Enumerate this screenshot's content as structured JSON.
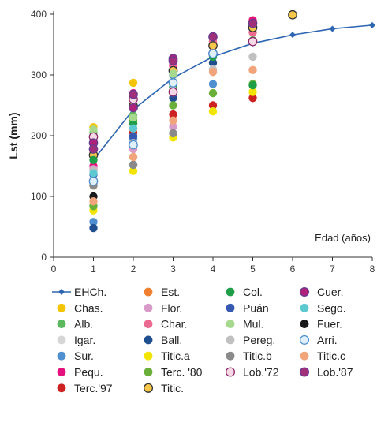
{
  "chart_data": {
    "type": "scatter",
    "ylabel": "Lst (mm)",
    "xlabel_inside": "Edad (años)",
    "xlim": [
      0,
      8
    ],
    "ylim": [
      0,
      400
    ],
    "x_ticks": [
      0,
      1,
      2,
      3,
      4,
      5,
      6,
      7,
      8
    ],
    "y_ticks": [
      0,
      100,
      200,
      300,
      400
    ],
    "grid": false,
    "legend_position": "bottom",
    "line_series": {
      "name": "EHCh.",
      "color": "#2f66b3",
      "x": [
        1,
        2,
        3,
        4,
        5,
        6,
        7,
        8
      ],
      "y": [
        160,
        243,
        295,
        330,
        352,
        366,
        376,
        382
      ]
    },
    "series": [
      {
        "name": "Chas.",
        "color": "#f4c400",
        "outline": "none",
        "x": [
          1,
          2,
          3,
          4,
          5
        ],
        "y": [
          214,
          287,
          328,
          360,
          390
        ]
      },
      {
        "name": "Alb.",
        "color": "#5cb85c",
        "outline": "none",
        "x": [
          1,
          2,
          3,
          4,
          5
        ],
        "y": [
          205,
          233,
          307,
          352,
          357
        ]
      },
      {
        "name": "Igar.",
        "color": "#d6d6d6",
        "outline": "none",
        "x": [
          1,
          2,
          3
        ],
        "y": [
          160,
          190,
          290
        ]
      },
      {
        "name": "Sur.",
        "color": "#4f8fd0",
        "outline": "none",
        "x": [
          1,
          2,
          3,
          4
        ],
        "y": [
          58,
          195,
          300,
          285
        ]
      },
      {
        "name": "Pequ.",
        "color": "#e4117e",
        "outline": "none",
        "x": [
          1,
          2,
          3,
          4,
          5
        ],
        "y": [
          150,
          270,
          315,
          360,
          390
        ]
      },
      {
        "name": "Terc.'97",
        "color": "#cc2222",
        "outline": "none",
        "x": [
          1,
          2,
          3,
          4,
          5
        ],
        "y": [
          122,
          205,
          235,
          250,
          262
        ]
      },
      {
        "name": "Est.",
        "color": "#f08030",
        "outline": "none",
        "x": [
          1,
          2
        ],
        "y": [
          118,
          212
        ]
      },
      {
        "name": "Flor.",
        "color": "#d89bc8",
        "outline": "none",
        "x": [
          1,
          2,
          3
        ],
        "y": [
          145,
          178,
          215
        ]
      },
      {
        "name": "Char.",
        "color": "#ec6a90",
        "outline": "none",
        "x": [
          1,
          2,
          3,
          4,
          5
        ],
        "y": [
          174,
          268,
          318,
          355,
          370
        ]
      },
      {
        "name": "Ball.",
        "color": "#1f4f8f",
        "outline": "none",
        "x": [
          1,
          2,
          3,
          4
        ],
        "y": [
          48,
          152,
          262,
          320
        ]
      },
      {
        "name": "Titic.a",
        "color": "#f2e600",
        "outline": "none",
        "x": [
          1,
          2,
          3,
          4,
          5
        ],
        "y": [
          77,
          142,
          197,
          240,
          272
        ]
      },
      {
        "name": "Terc. '80",
        "color": "#6aaf3a",
        "outline": "none",
        "x": [
          1,
          2,
          3,
          4,
          5
        ],
        "y": [
          84,
          225,
          250,
          270,
          285
        ]
      },
      {
        "name": "Titic.",
        "color": "#f9c84a",
        "outline": "#333333",
        "x": [
          1,
          2,
          3,
          4,
          5,
          6
        ],
        "y": [
          168,
          249,
          307,
          348,
          378,
          399
        ]
      },
      {
        "name": "Col.",
        "color": "#1f9e48",
        "outline": "none",
        "x": [
          1,
          2,
          3,
          4,
          5
        ],
        "y": [
          160,
          220,
          280,
          330,
          283
        ]
      },
      {
        "name": "Puán",
        "color": "#3558b0",
        "outline": "none",
        "x": [
          1,
          2,
          3
        ],
        "y": [
          136,
          199,
          270
        ]
      },
      {
        "name": "Mul.",
        "color": "#a6d98e",
        "outline": "none",
        "x": [
          1,
          2,
          3
        ],
        "y": [
          210,
          230,
          302
        ]
      },
      {
        "name": "Pereg.",
        "color": "#c0c0c0",
        "outline": "none",
        "x": [
          1,
          2,
          3,
          4,
          5
        ],
        "y": [
          142,
          188,
          275,
          309,
          330
        ]
      },
      {
        "name": "Titic.b",
        "color": "#8a8a8a",
        "outline": "none",
        "x": [
          1,
          2,
          3
        ],
        "y": [
          118,
          152,
          204
        ]
      },
      {
        "name": "Lob.'72",
        "color": "#f7d9e6",
        "outline": "#8a2a6a",
        "x": [
          1,
          2,
          3,
          4,
          5
        ],
        "y": [
          198,
          260,
          272,
          335,
          355
        ]
      },
      {
        "name": "Cuer.",
        "color": "#b0227a",
        "outline": "#6a3b8f",
        "x": [
          1,
          2,
          3
        ],
        "y": [
          188,
          246,
          327
        ]
      },
      {
        "name": "Sego.",
        "color": "#5cc8d0",
        "outline": "none",
        "x": [
          1,
          2
        ],
        "y": [
          138,
          212
        ]
      },
      {
        "name": "Fuer.",
        "color": "#1a1a1a",
        "outline": "none",
        "x": [
          1
        ],
        "y": [
          100
        ]
      },
      {
        "name": "Arri.",
        "color": "#dff0fa",
        "outline": "#4f8fd0",
        "x": [
          1,
          2,
          3,
          4
        ],
        "y": [
          125,
          185,
          287,
          335
        ]
      },
      {
        "name": "Titic.c",
        "color": "#f2a47a",
        "outline": "none",
        "x": [
          1,
          2,
          3,
          4,
          5
        ],
        "y": [
          92,
          165,
          225,
          305,
          308
        ]
      },
      {
        "name": "Lob.'87",
        "color": "#a0307a",
        "outline": "#6a3b8f",
        "x": [
          1,
          2,
          3,
          4,
          5
        ],
        "y": [
          178,
          268,
          323,
          363,
          385
        ]
      }
    ],
    "legend_order": [
      "EHCh.",
      "Est.",
      "Col.",
      "Cuer.",
      "Chas.",
      "Flor.",
      "Puán",
      "Sego.",
      "Alb.",
      "Char.",
      "Mul.",
      "Fuer.",
      "Igar.",
      "Ball.",
      "Pereg.",
      "Arri.",
      "Sur.",
      "Titic.a",
      "Titic.b",
      "Titic.c",
      "Pequ.",
      "Terc. '80",
      "Lob.'72",
      "Lob.'87",
      "Terc.'97",
      "Titic."
    ]
  }
}
